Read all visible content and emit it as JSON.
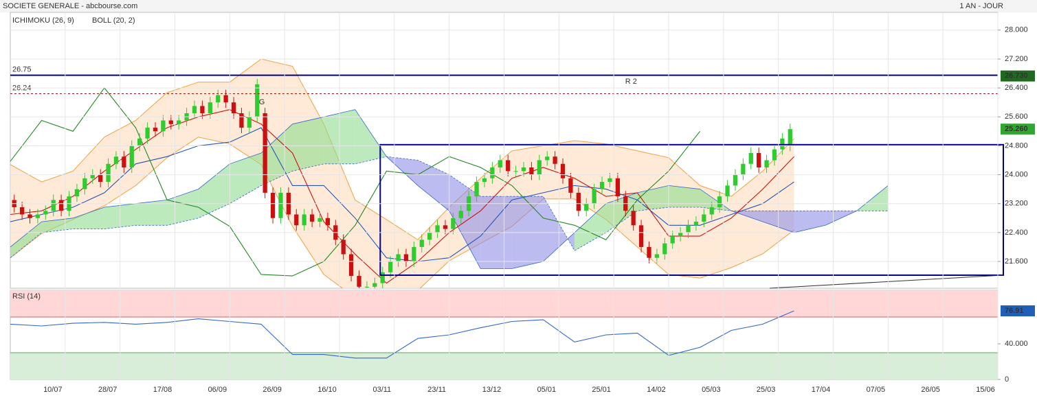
{
  "chart_data": {
    "type": "candlestick",
    "title": "SOCIETE GENERALE - abcbourse.com",
    "subtitle": "1 AN - JOUR",
    "xlim": [
      0,
      126
    ],
    "xticks": [
      {
        "value": 7,
        "label": "10/07"
      },
      {
        "value": 14,
        "label": "28/07"
      },
      {
        "value": 21,
        "label": "17/08"
      },
      {
        "value": 28,
        "label": "06/09"
      },
      {
        "value": 35,
        "label": "26/09"
      },
      {
        "value": 42,
        "label": "16/10"
      },
      {
        "value": 49,
        "label": "03/11"
      },
      {
        "value": 56,
        "label": "23/11"
      },
      {
        "value": 63,
        "label": "13/12"
      },
      {
        "value": 70,
        "label": "05/01"
      },
      {
        "value": 77,
        "label": "25/01"
      },
      {
        "value": 84,
        "label": "14/02"
      },
      {
        "value": 91,
        "label": "05/03"
      },
      {
        "value": 98,
        "label": "25/03"
      },
      {
        "value": 105,
        "label": "17/04"
      },
      {
        "value": 112,
        "label": "07/05"
      },
      {
        "value": 119,
        "label": "26/05"
      },
      {
        "value": 126,
        "label": "15/06"
      }
    ],
    "ylim": [
      20.86,
      28.49
    ],
    "yticks": [
      {
        "value": 28,
        "label": "28.000"
      },
      {
        "value": 27.2,
        "label": "27.200"
      },
      {
        "value": 26.4,
        "label": "26.400"
      },
      {
        "value": 25.6,
        "label": "25.600"
      },
      {
        "value": 24.8,
        "label": "24.800"
      },
      {
        "value": 24,
        "label": "24.000"
      },
      {
        "value": 23.2,
        "label": "23.200"
      },
      {
        "value": 22.4,
        "label": "22.400"
      },
      {
        "value": 21.6,
        "label": "21.600"
      }
    ],
    "grid": true,
    "up_color": "#2fcc2f",
    "down_color": "#cc1010",
    "candles": {
      "open": [
        23.3,
        23.1,
        22.9,
        22.8,
        22.9,
        23.0,
        23.3,
        23.0,
        23.4,
        23.6,
        23.9,
        24.0,
        23.8,
        24.3,
        24.5,
        24.2,
        24.8,
        25.0,
        25.3,
        25.2,
        25.5,
        25.4,
        25.5,
        25.7,
        25.9,
        25.7,
        26.0,
        26.2,
        26.0,
        25.7,
        25.3,
        25.6,
        25.7,
        23.5,
        22.8,
        23.5,
        22.9,
        22.6,
        22.9,
        22.7,
        22.8,
        22.6,
        22.2,
        21.8,
        21.2,
        20.9,
        20.9,
        21.0,
        21.3,
        21.6,
        21.8,
        21.6,
        22.0,
        22.2,
        22.4,
        22.6,
        22.5,
        22.8,
        23.0,
        23.4,
        23.8,
        23.9,
        24.2,
        24.4,
        24.1,
        24.1,
        24.2,
        24.0,
        24.4,
        24.5,
        24.3,
        23.9,
        23.5,
        23.0,
        23.2,
        23.6,
        23.8,
        23.9,
        23.4,
        23.0,
        22.6,
        22.0,
        21.7,
        21.8,
        22.1,
        22.3,
        22.4,
        22.6,
        22.7,
        22.9,
        23.1,
        23.4,
        23.7,
        24.0,
        24.3,
        24.6,
        24.2,
        24.4,
        24.7,
        24.8
      ],
      "high": [
        23.45,
        23.25,
        23.05,
        23.05,
        23.15,
        23.45,
        23.45,
        23.55,
        23.75,
        24.05,
        24.15,
        24.15,
        24.45,
        24.65,
        24.65,
        24.95,
        25.15,
        25.45,
        25.45,
        25.65,
        25.65,
        25.65,
        25.85,
        26.05,
        26.05,
        26.15,
        26.35,
        26.35,
        26.15,
        25.85,
        25.75,
        26.65,
        25.85,
        23.65,
        23.65,
        23.65,
        23.05,
        23.05,
        23.05,
        22.95,
        22.95,
        22.75,
        22.35,
        21.95,
        21.35,
        21.05,
        21.15,
        21.45,
        21.75,
        21.95,
        21.95,
        22.15,
        22.35,
        22.55,
        22.75,
        22.75,
        22.95,
        23.15,
        23.55,
        23.95,
        24.05,
        24.35,
        24.55,
        24.55,
        24.25,
        24.35,
        24.35,
        24.55,
        24.65,
        24.65,
        24.45,
        24.05,
        23.65,
        23.35,
        23.75,
        23.95,
        24.05,
        24.05,
        23.55,
        23.15,
        22.75,
        22.15,
        21.95,
        22.25,
        22.45,
        22.55,
        22.75,
        22.85,
        23.05,
        23.25,
        23.55,
        23.85,
        24.15,
        24.45,
        24.75,
        24.75,
        24.55,
        24.85,
        25.15,
        25.41
      ],
      "low": [
        22.95,
        22.75,
        22.65,
        22.65,
        22.75,
        22.85,
        22.85,
        22.85,
        23.25,
        23.45,
        23.75,
        23.65,
        23.65,
        24.15,
        24.05,
        24.05,
        24.65,
        24.85,
        25.05,
        25.05,
        25.25,
        25.25,
        25.35,
        25.55,
        25.55,
        25.55,
        25.85,
        25.85,
        25.55,
        25.15,
        25.15,
        25.45,
        23.35,
        22.65,
        22.65,
        22.75,
        22.45,
        22.45,
        22.55,
        22.55,
        22.45,
        22.05,
        21.65,
        21.05,
        20.75,
        20.75,
        20.75,
        20.85,
        21.15,
        21.45,
        21.45,
        21.45,
        21.85,
        22.05,
        22.25,
        22.35,
        22.35,
        22.65,
        22.85,
        23.25,
        23.65,
        23.75,
        24.05,
        23.95,
        23.95,
        23.95,
        23.85,
        23.85,
        24.25,
        24.15,
        23.75,
        23.35,
        22.85,
        22.85,
        23.05,
        23.45,
        23.65,
        23.25,
        22.85,
        22.45,
        21.85,
        21.55,
        21.55,
        21.65,
        21.95,
        22.15,
        22.25,
        22.45,
        22.55,
        22.75,
        22.95,
        23.25,
        23.55,
        23.85,
        24.15,
        24.05,
        24.05,
        24.25,
        24.55,
        24.65
      ],
      "close": [
        23.1,
        22.9,
        22.8,
        22.9,
        23.0,
        23.3,
        23.0,
        23.4,
        23.6,
        23.9,
        24.0,
        23.8,
        24.3,
        24.5,
        24.2,
        24.8,
        25.0,
        25.3,
        25.2,
        25.5,
        25.4,
        25.5,
        25.7,
        25.9,
        25.7,
        26.0,
        26.2,
        26.0,
        25.7,
        25.3,
        25.6,
        26.5,
        23.5,
        22.8,
        23.5,
        22.9,
        22.6,
        22.9,
        22.7,
        22.8,
        22.6,
        22.2,
        21.8,
        21.2,
        20.9,
        20.9,
        21.0,
        21.3,
        21.6,
        21.8,
        21.6,
        22.0,
        22.2,
        22.4,
        22.6,
        22.5,
        22.8,
        23.0,
        23.4,
        23.8,
        23.9,
        24.2,
        24.4,
        24.1,
        24.1,
        24.2,
        24.0,
        24.4,
        24.5,
        24.3,
        23.9,
        23.5,
        23.0,
        23.2,
        23.6,
        23.8,
        23.9,
        23.4,
        23.0,
        22.6,
        22.0,
        21.7,
        21.8,
        22.1,
        22.3,
        22.4,
        22.6,
        22.7,
        22.9,
        23.1,
        23.4,
        23.7,
        24.0,
        24.3,
        24.6,
        24.2,
        24.4,
        24.7,
        25.0,
        25.26
      ],
      "last_label": "25.260"
    },
    "indicators": {
      "labels": [
        "ICHIMOKU (26, 9)",
        "BOLL (20, 2)"
      ],
      "x": [
        0,
        4,
        8,
        12,
        16,
        20,
        24,
        28,
        32,
        36,
        40,
        44,
        48,
        52,
        56,
        60,
        64,
        68,
        72,
        76,
        80,
        84,
        88,
        92,
        96,
        100,
        104,
        108,
        112,
        116,
        120,
        124
      ],
      "bollinger_upper": [
        24.28,
        23.8,
        24.1,
        25.04,
        25.5,
        26.27,
        26.56,
        26.56,
        27.2,
        27.0,
        25.4,
        23.3,
        22.76,
        22.2,
        23.1,
        23.9,
        24.66,
        24.8,
        24.94,
        24.85,
        24.66,
        24.47,
        23.7,
        23.4,
        24.1,
        25.0,
        null,
        null,
        null,
        null,
        null,
        null
      ],
      "bollinger_lower": [
        21.7,
        22.37,
        22.76,
        23.14,
        23.7,
        24.47,
        25.04,
        24.85,
        24.28,
        22.57,
        21.24,
        20.6,
        20.6,
        20.8,
        21.62,
        22.1,
        22.57,
        23.33,
        23.33,
        22.76,
        22.0,
        21.24,
        21.14,
        21.43,
        21.81,
        22.47,
        null,
        null,
        null,
        null,
        null,
        null
      ],
      "span_a": [
        22.0,
        22.7,
        22.8,
        23.1,
        23.2,
        23.3,
        23.6,
        24.3,
        24.6,
        25.4,
        25.6,
        25.8,
        24.5,
        23.7,
        23.0,
        21.4,
        21.4,
        21.6,
        22.4,
        23.2,
        23.5,
        23.7,
        23.6,
        23.0,
        22.7,
        22.4,
        22.6,
        23.0,
        23.7,
        null,
        null,
        null
      ],
      "span_b": [
        21.7,
        22.4,
        22.5,
        22.5,
        22.6,
        22.6,
        22.8,
        23.2,
        23.7,
        24.1,
        24.3,
        24.3,
        24.5,
        24.4,
        24.0,
        23.4,
        23.4,
        23.4,
        21.9,
        22.4,
        23.0,
        23.1,
        23.1,
        23.0,
        23.0,
        23.0,
        23.0,
        23.0,
        23.0,
        null,
        null,
        null
      ],
      "tenkan": [
        22.9,
        23.0,
        23.4,
        24.1,
        24.7,
        25.3,
        25.6,
        25.8,
        25.4,
        24.6,
        22.7,
        21.8,
        21.0,
        21.6,
        22.4,
        23.0,
        23.9,
        24.2,
        23.9,
        23.4,
        23.5,
        22.3,
        22.3,
        22.8,
        23.6,
        24.5,
        null,
        null,
        null,
        null,
        null,
        null
      ],
      "kijun": [
        22.7,
        22.9,
        23.1,
        23.5,
        24.3,
        24.5,
        24.8,
        24.9,
        25.3,
        23.7,
        23.7,
        22.8,
        21.7,
        21.6,
        21.7,
        22.3,
        23.3,
        23.5,
        23.7,
        23.6,
        23.3,
        22.6,
        22.6,
        22.9,
        23.2,
        23.8,
        null,
        null,
        null,
        null,
        null,
        null
      ],
      "chikou": [
        24.37,
        25.5,
        25.2,
        26.4,
        25.3,
        23.3,
        23.1,
        22.57,
        21.24,
        21.2,
        21.6,
        22.6,
        24.1,
        24.0,
        24.5,
        24.2,
        23.7,
        22.8,
        22.6,
        22.2,
        23.3,
        24.1,
        25.2,
        null,
        null,
        null,
        null,
        null,
        null,
        null,
        null,
        null
      ]
    },
    "levels": [
      {
        "value": 26.75,
        "label": "26.75",
        "color": "#000099",
        "dashed": false
      },
      {
        "value": 26.24,
        "label": "26.24",
        "color": "#cc0000",
        "dashed": true
      }
    ],
    "level_marker": {
      "value": 26.73,
      "label": "26.730"
    },
    "channel": {
      "x": [
        47.2,
        126
      ],
      "y": [
        21.22,
        24.83
      ]
    },
    "annotations": [
      {
        "text": "R 2",
        "x": 79.2,
        "y": 26.57
      },
      {
        "text": "G",
        "x": 32.1,
        "y": 26.0
      }
    ],
    "rsi": {
      "title": "RSI (14)",
      "ylim": [
        0,
        100
      ],
      "yticks": [
        {
          "value": 40,
          "label": "40.000"
        },
        0
      ],
      "overbought": 70,
      "oversold": 30,
      "values": [
        62,
        60,
        63,
        64,
        62,
        64,
        68,
        65,
        62,
        28,
        28,
        24,
        24,
        46,
        50,
        58,
        65,
        67,
        42,
        50,
        52,
        27,
        36,
        55,
        62,
        76.91,
        null,
        null,
        null,
        null,
        null,
        null
      ],
      "last_label": "76.91"
    }
  }
}
